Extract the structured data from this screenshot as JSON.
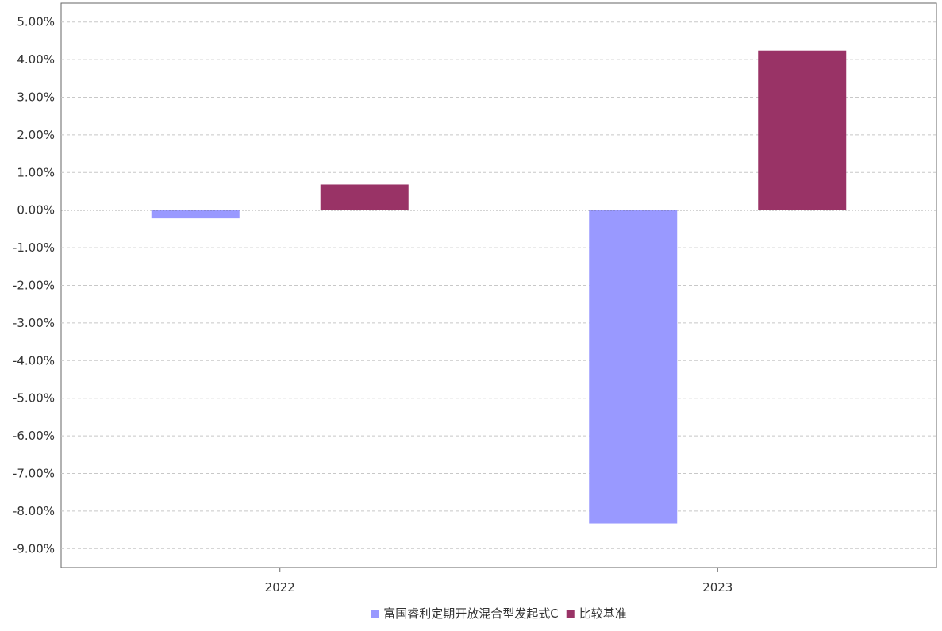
{
  "chart_data": {
    "type": "bar",
    "categories": [
      "2022",
      "2023"
    ],
    "series": [
      {
        "name": "富国睿利定期开放混合型发起式C",
        "color": "#9999ff",
        "values": [
          -0.22,
          -8.33
        ]
      },
      {
        "name": "比较基准",
        "color": "#993366",
        "values": [
          0.68,
          4.24
        ]
      }
    ],
    "ylim": [
      -9.5,
      5.5
    ],
    "yticks": [
      5,
      4,
      3,
      2,
      1,
      0,
      -1,
      -2,
      -3,
      -4,
      -5,
      -6,
      -7,
      -8,
      -9
    ],
    "ytick_labels": [
      "5.00%",
      "4.00%",
      "3.00%",
      "2.00%",
      "1.00%",
      "0.00%",
      "-1.00%",
      "-2.00%",
      "-3.00%",
      "-4.00%",
      "-5.00%",
      "-6.00%",
      "-7.00%",
      "-8.00%",
      "-9.00%"
    ],
    "grid": true,
    "legend_position": "bottom-center"
  }
}
